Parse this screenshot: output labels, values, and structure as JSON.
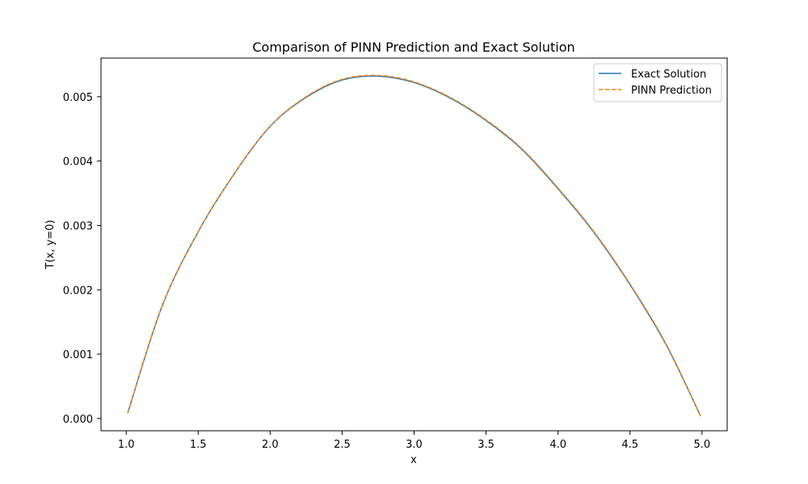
{
  "chart_data": {
    "type": "line",
    "title": "Comparison of PINN Prediction and Exact Solution",
    "xlabel": "x",
    "ylabel": "T(x, y=0)",
    "xlim": [
      0.825,
      5.175
    ],
    "ylim": [
      -0.00019,
      0.0056
    ],
    "xticks": [
      1.0,
      1.5,
      2.0,
      2.5,
      3.0,
      3.5,
      4.0,
      4.5,
      5.0
    ],
    "xtick_labels": [
      "1.0",
      "1.5",
      "2.0",
      "2.5",
      "3.0",
      "3.5",
      "4.0",
      "4.5",
      "5.0"
    ],
    "yticks": [
      0.0,
      0.001,
      0.002,
      0.003,
      0.004,
      0.005
    ],
    "ytick_labels": [
      "0.000",
      "0.001",
      "0.002",
      "0.003",
      "0.004",
      "0.005"
    ],
    "grid": false,
    "legend_position": "top-right",
    "series": [
      {
        "name": "Exact Solution",
        "color": "#1f77b4",
        "style": "solid",
        "x": [
          1.01,
          1.25,
          1.5,
          1.75,
          2.0,
          2.25,
          2.5,
          2.75,
          3.0,
          3.25,
          3.5,
          3.75,
          4.0,
          4.25,
          4.5,
          4.75,
          4.99
        ],
        "y": [
          8e-05,
          0.00175,
          0.0029,
          0.0038,
          0.00454,
          0.00499,
          0.00526,
          0.00532,
          0.00522,
          0.00498,
          0.00463,
          0.00418,
          0.00357,
          0.00289,
          0.00208,
          0.00115,
          4e-05
        ]
      },
      {
        "name": "PINN Prediction",
        "color": "#ff7f0e",
        "style": "dashed",
        "x": [
          1.01,
          1.25,
          1.5,
          1.75,
          2.0,
          2.25,
          2.5,
          2.75,
          3.0,
          3.25,
          3.5,
          3.75,
          4.0,
          4.25,
          4.5,
          4.75,
          4.99
        ],
        "y": [
          8e-05,
          0.00175,
          0.0029,
          0.0038,
          0.00454,
          0.005,
          0.00527,
          0.00533,
          0.00523,
          0.00499,
          0.00464,
          0.00419,
          0.00358,
          0.0029,
          0.00209,
          0.00116,
          4e-05
        ]
      }
    ]
  }
}
